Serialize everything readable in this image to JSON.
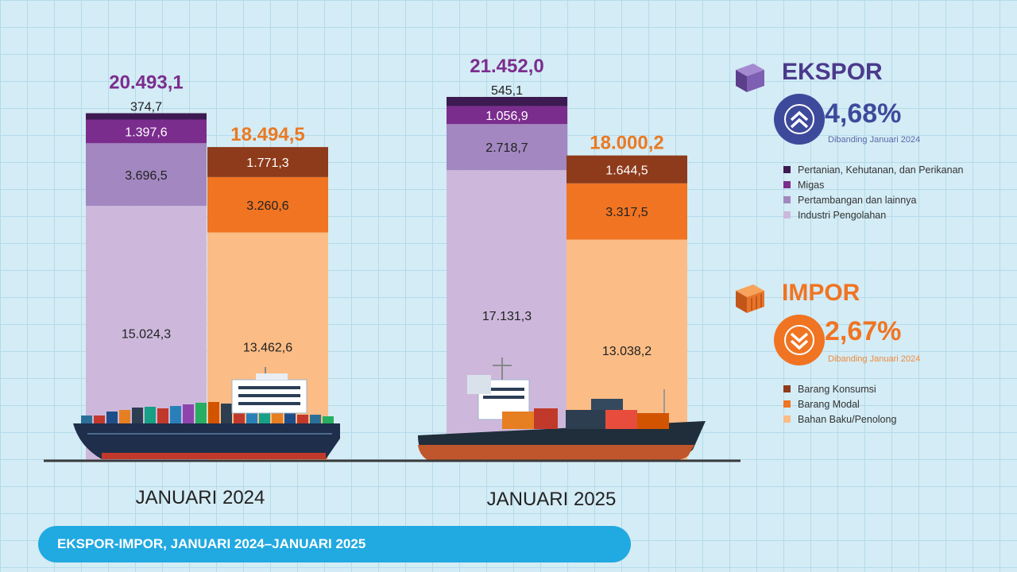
{
  "chart_data": {
    "type": "bar",
    "title": "EKSPOR-IMPOR, JANUARI 2024–JANUARI 2025",
    "categories": [
      "JANUARI 2024",
      "JANUARI 2025"
    ],
    "ekspor": {
      "label": "EKSPOR",
      "change": "4,68%",
      "direction": "up",
      "compare_note": "Dibanding Januari 2024",
      "totals": [
        "20.493,1",
        "21.452,0"
      ],
      "series": [
        {
          "name": "Pertanian, Kehutanan, dan Perikanan",
          "color": "#3d1a52",
          "values": [
            374.7,
            545.1
          ],
          "labels": [
            "374,7",
            "545,1"
          ],
          "label_color": "#222222",
          "label_outside": true
        },
        {
          "name": "Migas",
          "color": "#7b2d8e",
          "values": [
            1397.6,
            1056.9
          ],
          "labels": [
            "1.397,6",
            "1.056,9"
          ],
          "label_color": "#ffffff"
        },
        {
          "name": "Pertambangan dan lainnya",
          "color": "#a287c0",
          "values": [
            3696.5,
            2718.7
          ],
          "labels": [
            "3.696,5",
            "2.718,7"
          ],
          "label_color": "#222222"
        },
        {
          "name": "Industri Pengolahan",
          "color": "#cdb8dc",
          "values": [
            15024.3,
            17131.3
          ],
          "labels": [
            "15.024,3",
            "17.131,3"
          ],
          "label_color": "#222222"
        }
      ]
    },
    "impor": {
      "label": "IMPOR",
      "change": "2,67%",
      "direction": "down",
      "compare_note": "Dibanding Januari 2024",
      "totals": [
        "18.494,5",
        "18.000,2"
      ],
      "series": [
        {
          "name": "Barang Konsumsi",
          "color": "#8e3b1b",
          "values": [
            1771.3,
            1644.5
          ],
          "labels": [
            "1.771,3",
            "1.644,5"
          ],
          "label_color": "#ffffff"
        },
        {
          "name": "Barang Modal",
          "color": "#f07422",
          "values": [
            3260.6,
            3317.5
          ],
          "labels": [
            "3.260,6",
            "3.317,5"
          ],
          "label_color": "#222222"
        },
        {
          "name": "Bahan Baku/Penolong",
          "color": "#fbbc85",
          "values": [
            13462.6,
            13038.2
          ],
          "labels": [
            "13.462,6",
            "13.038,2"
          ],
          "label_color": "#222222"
        }
      ]
    }
  },
  "colors": {
    "ekspor_accent": "#7b2d8e",
    "ekspor_title": "#4b3a8c",
    "ekspor_badge": "#3d4a9b",
    "impor_accent": "#f07422",
    "impor_total": "#ea7a23",
    "footer_bar": "#21a9e1",
    "baseline": "#3a3a3a"
  },
  "icons": {
    "ekspor": "purple-container-icon",
    "impor": "orange-container-icon",
    "ekspor_change": "double-chevron-up-icon",
    "impor_change": "double-chevron-down-icon",
    "ships": [
      "container-ship",
      "cargo-ship"
    ]
  },
  "footer": {
    "label": "EKSPOR-IMPOR, JANUARI 2024–JANUARI 2025"
  }
}
